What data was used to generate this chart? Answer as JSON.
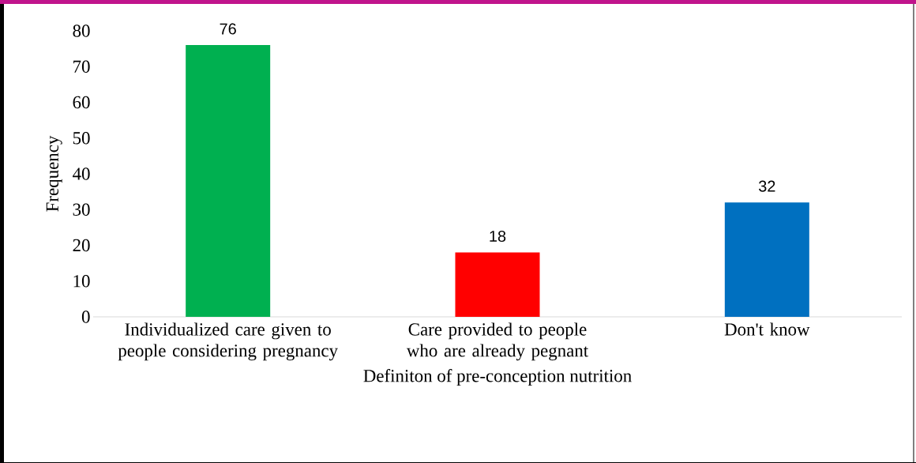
{
  "chart_data": {
    "type": "bar",
    "categories": [
      "Individualized care given to people considering pregnancy",
      "Care provided to people who are already pegnant",
      "Don't know"
    ],
    "values": [
      76,
      18,
      32
    ],
    "colors": [
      "#00b050",
      "#ff0000",
      "#0070c0"
    ],
    "xlabel": "Definiton of pre-conception nutrition",
    "ylabel": "Frequency",
    "ylim": [
      0,
      80
    ],
    "yticks": [
      0,
      10,
      20,
      30,
      40,
      50,
      60,
      70,
      80
    ],
    "data_labels": true,
    "grid": false,
    "legend": false
  }
}
